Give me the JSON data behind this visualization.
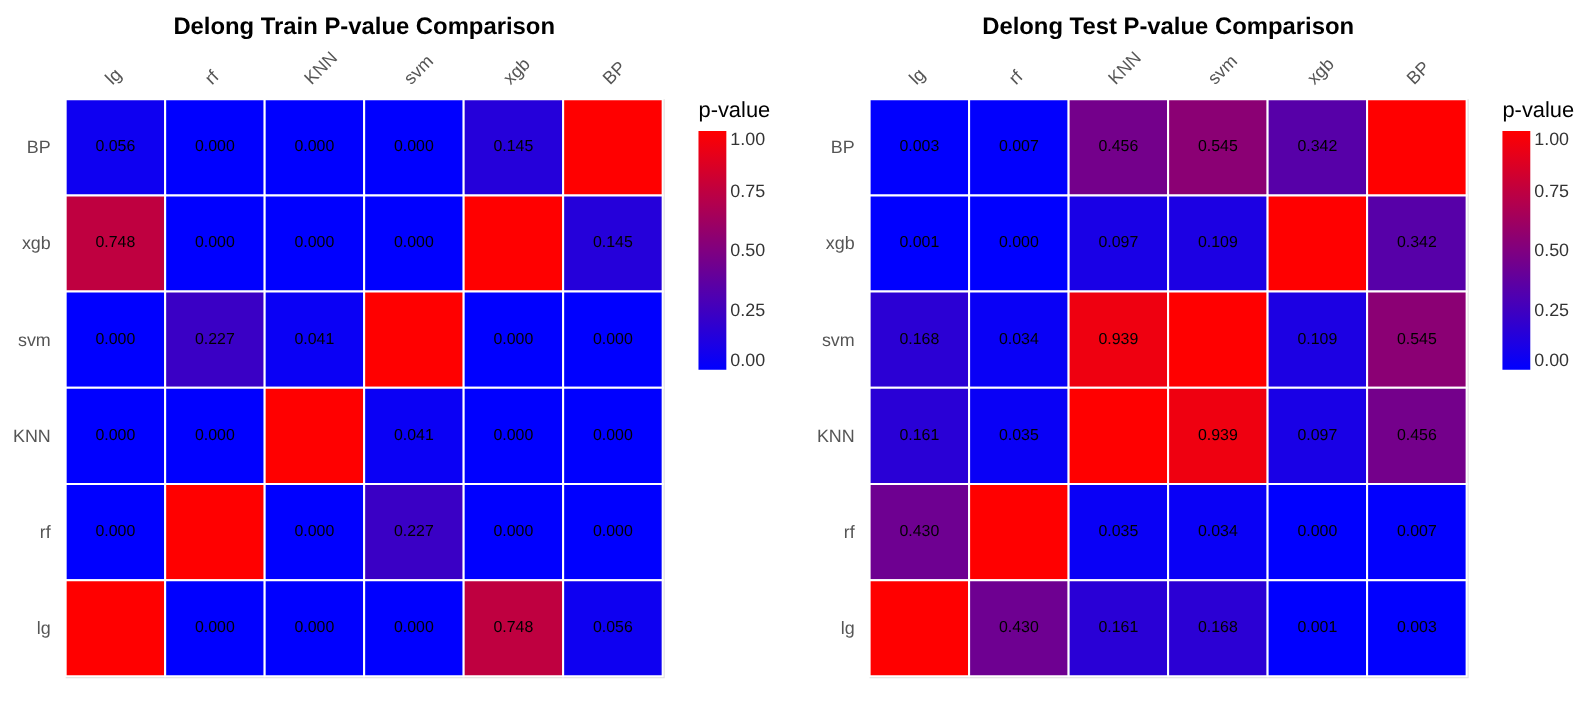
{
  "chart_data": [
    {
      "type": "heatmap",
      "title": "Delong Train P-value Comparison",
      "legend_title": "p-value",
      "categories": [
        "lg",
        "rf",
        "KNN",
        "svm",
        "xgb",
        "BP"
      ],
      "y_categories": [
        "BP",
        "xgb",
        "svm",
        "KNN",
        "rf",
        "lg"
      ],
      "cells": [
        [
          0.056,
          0.0,
          0.0,
          0.0,
          0.145,
          1.0
        ],
        [
          0.748,
          0.0,
          0.0,
          0.0,
          1.0,
          0.145
        ],
        [
          0.0,
          0.227,
          0.041,
          1.0,
          0.0,
          0.0
        ],
        [
          0.0,
          0.0,
          1.0,
          0.041,
          0.0,
          0.0
        ],
        [
          0.0,
          1.0,
          0.0,
          0.227,
          0.0,
          0.0
        ],
        [
          1.0,
          0.0,
          0.0,
          0.0,
          0.748,
          0.056
        ]
      ],
      "cell_labels": [
        [
          "0.056",
          "0.000",
          "0.000",
          "0.000",
          "0.145",
          null
        ],
        [
          "0.748",
          "0.000",
          "0.000",
          "0.000",
          null,
          "0.145"
        ],
        [
          "0.000",
          "0.227",
          "0.041",
          null,
          "0.000",
          "0.000"
        ],
        [
          "0.000",
          "0.000",
          null,
          "0.041",
          "0.000",
          "0.000"
        ],
        [
          "0.000",
          null,
          "0.000",
          "0.227",
          "0.000",
          "0.000"
        ],
        [
          null,
          "0.000",
          "0.000",
          "0.000",
          "0.748",
          "0.056"
        ]
      ],
      "clim": [
        0,
        1
      ],
      "cticks": [
        {
          "value": 0,
          "label": "0.00"
        },
        {
          "value": 0.25,
          "label": "0.25"
        },
        {
          "value": 0.5,
          "label": "0.50"
        },
        {
          "value": 0.75,
          "label": "0.75"
        },
        {
          "value": 1,
          "label": "1.00"
        }
      ]
    },
    {
      "type": "heatmap",
      "title": "Delong Test P-value Comparison",
      "legend_title": "p-value",
      "categories": [
        "lg",
        "rf",
        "KNN",
        "svm",
        "xgb",
        "BP"
      ],
      "y_categories": [
        "BP",
        "xgb",
        "svm",
        "KNN",
        "rf",
        "lg"
      ],
      "cells": [
        [
          0.003,
          0.007,
          0.456,
          0.545,
          0.342,
          1.0
        ],
        [
          0.001,
          0.0,
          0.097,
          0.109,
          1.0,
          0.342
        ],
        [
          0.168,
          0.034,
          0.939,
          1.0,
          0.109,
          0.545
        ],
        [
          0.161,
          0.035,
          1.0,
          0.939,
          0.097,
          0.456
        ],
        [
          0.43,
          1.0,
          0.035,
          0.034,
          0.0,
          0.007
        ],
        [
          1.0,
          0.43,
          0.161,
          0.168,
          0.001,
          0.003
        ]
      ],
      "cell_labels": [
        [
          "0.003",
          "0.007",
          "0.456",
          "0.545",
          "0.342",
          null
        ],
        [
          "0.001",
          "0.000",
          "0.097",
          "0.109",
          null,
          "0.342"
        ],
        [
          "0.168",
          "0.034",
          "0.939",
          null,
          "0.109",
          "0.545"
        ],
        [
          "0.161",
          "0.035",
          null,
          "0.939",
          "0.097",
          "0.456"
        ],
        [
          "0.430",
          null,
          "0.035",
          "0.034",
          "0.000",
          "0.007"
        ],
        [
          null,
          "0.430",
          "0.161",
          "0.168",
          "0.001",
          "0.003"
        ]
      ],
      "clim": [
        0,
        1
      ],
      "cticks": [
        {
          "value": 0,
          "label": "0.00"
        },
        {
          "value": 0.25,
          "label": "0.25"
        },
        {
          "value": 0.5,
          "label": "0.50"
        },
        {
          "value": 0.75,
          "label": "0.75"
        },
        {
          "value": 1,
          "label": "1.00"
        }
      ]
    }
  ]
}
